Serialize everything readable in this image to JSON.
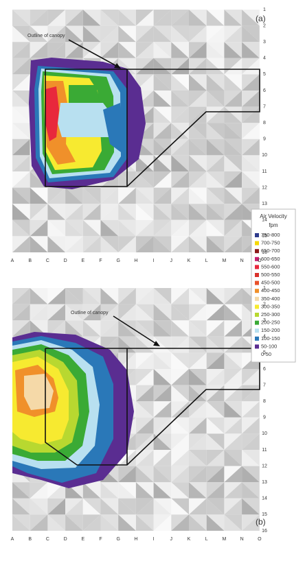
{
  "panels": [
    {
      "label": "(a)",
      "annotation": "Outline of canopy"
    },
    {
      "label": "(b)",
      "annotation": "Outline of canopy"
    }
  ],
  "columns": [
    "A",
    "B",
    "C",
    "D",
    "E",
    "F",
    "G",
    "H",
    "I",
    "J",
    "K",
    "L",
    "M",
    "N",
    "O"
  ],
  "rows": [
    1,
    2,
    3,
    4,
    5,
    6,
    7,
    8,
    9,
    10,
    11,
    12,
    13,
    14,
    15,
    16
  ],
  "legend": {
    "title": "Air Velocity",
    "unit": "fpm",
    "items": [
      {
        "label": "750-800",
        "color": "#2e3a8c"
      },
      {
        "label": "700-750",
        "color": "#f5d800"
      },
      {
        "label": "650-700",
        "color": "#8b1a1a"
      },
      {
        "label": "600-650",
        "color": "#c81e6e"
      },
      {
        "label": "550-600",
        "color": "#e8283c"
      },
      {
        "label": "500-550",
        "color": "#d9312b"
      },
      {
        "label": "450-500",
        "color": "#e8502a"
      },
      {
        "label": "400-450",
        "color": "#f0902a"
      },
      {
        "label": "350-400",
        "color": "#f5d9a8"
      },
      {
        "label": "300-350",
        "color": "#f7ea30"
      },
      {
        "label": "250-300",
        "color": "#b8d830"
      },
      {
        "label": "200-250",
        "color": "#3aaa35"
      },
      {
        "label": "150-200",
        "color": "#b8e0f0"
      },
      {
        "label": "100-150",
        "color": "#2a78b8"
      },
      {
        "label": "50-100",
        "color": "#5a2d91"
      },
      {
        "label": "0-50",
        "color": "#ffffff"
      }
    ]
  }
}
